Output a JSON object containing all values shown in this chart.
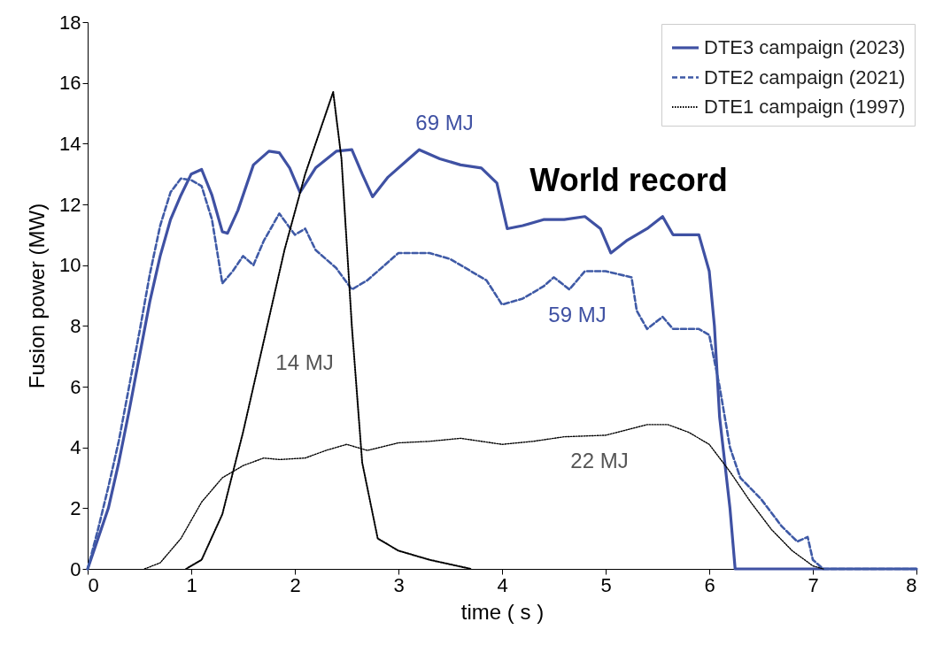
{
  "chart_data": {
    "type": "line",
    "xlabel": "time  ( s )",
    "ylabel": "Fusion power (MW)",
    "xlim": [
      0,
      8
    ],
    "xticks": [
      0,
      1,
      2,
      3,
      4,
      5,
      6,
      7,
      8
    ],
    "ylim": [
      0,
      18
    ],
    "yticks": [
      0,
      2,
      4,
      6,
      8,
      10,
      12,
      14,
      16,
      18
    ],
    "grid": false,
    "legend": "top right",
    "marker": "none",
    "series": [
      {
        "name": "DTE3 campaign (2023)",
        "color": "#3f51a3",
        "line_style": "solid",
        "x": [
          0,
          0.1,
          0.2,
          0.3,
          0.4,
          0.5,
          0.6,
          0.7,
          0.8,
          0.9,
          1.0,
          1.1,
          1.2,
          1.3,
          1.35,
          1.45,
          1.6,
          1.75,
          1.85,
          1.95,
          2.05,
          2.2,
          2.4,
          2.55,
          2.65,
          2.75,
          2.9,
          3.1,
          3.2,
          3.4,
          3.6,
          3.8,
          3.95,
          4.05,
          4.2,
          4.4,
          4.6,
          4.8,
          4.95,
          5.05,
          5.2,
          5.4,
          5.55,
          5.65,
          5.9,
          6.0,
          6.05,
          6.1,
          6.2,
          6.25,
          8.0
        ],
        "values": [
          0,
          1.0,
          2.0,
          3.5,
          5.2,
          7.0,
          8.8,
          10.3,
          11.5,
          12.3,
          13.0,
          13.15,
          12.3,
          11.1,
          11.05,
          11.8,
          13.3,
          13.75,
          13.7,
          13.2,
          12.4,
          13.2,
          13.75,
          13.8,
          13.0,
          12.25,
          12.9,
          13.5,
          13.8,
          13.5,
          13.3,
          13.2,
          12.7,
          11.2,
          11.3,
          11.5,
          11.5,
          11.6,
          11.2,
          10.4,
          10.8,
          11.2,
          11.6,
          11.0,
          11.0,
          9.8,
          8.0,
          5.0,
          2.0,
          0,
          0
        ]
      },
      {
        "name": "DTE2 campaign (2021)",
        "color": "#3f5aa6",
        "line_style": "dashed",
        "x": [
          0,
          0.1,
          0.2,
          0.3,
          0.4,
          0.5,
          0.6,
          0.7,
          0.8,
          0.9,
          1.0,
          1.1,
          1.2,
          1.3,
          1.4,
          1.5,
          1.6,
          1.7,
          1.85,
          2.0,
          2.1,
          2.2,
          2.4,
          2.55,
          2.7,
          3.0,
          3.3,
          3.5,
          3.7,
          3.85,
          4.0,
          4.2,
          4.4,
          4.5,
          4.65,
          4.8,
          5.0,
          5.25,
          5.3,
          5.4,
          5.55,
          5.65,
          5.9,
          6.0,
          6.1,
          6.2,
          6.3,
          6.5,
          6.7,
          6.85,
          6.95,
          7.0,
          7.1,
          8.0
        ],
        "values": [
          0,
          1.3,
          2.7,
          4.2,
          6.0,
          7.8,
          9.7,
          11.3,
          12.4,
          12.85,
          12.8,
          12.6,
          11.5,
          9.4,
          9.8,
          10.3,
          10.0,
          10.8,
          11.7,
          11.0,
          11.2,
          10.5,
          9.9,
          9.2,
          9.5,
          10.4,
          10.4,
          10.2,
          9.8,
          9.5,
          8.7,
          8.9,
          9.3,
          9.6,
          9.2,
          9.8,
          9.8,
          9.6,
          8.5,
          7.9,
          8.3,
          7.9,
          7.9,
          7.7,
          6.0,
          4.0,
          3.0,
          2.3,
          1.4,
          0.9,
          1.05,
          0.3,
          0,
          0
        ]
      },
      {
        "name": "DTE1 campaign (1997)",
        "color": "#000000",
        "line_style": "dotted",
        "x": [
          0.95,
          1.1,
          1.3,
          1.5,
          1.7,
          1.9,
          2.1,
          2.3,
          2.37,
          2.45,
          2.55,
          2.65,
          2.8,
          3.0,
          3.3,
          3.7
        ],
        "values": [
          0,
          0.3,
          1.8,
          4.5,
          7.5,
          10.5,
          13.0,
          15.0,
          15.7,
          13.5,
          8.0,
          3.5,
          1.0,
          0.6,
          0.3,
          0
        ]
      },
      {
        "color": "#000000",
        "line_style": "dotted",
        "x": [
          0.55,
          0.7,
          0.9,
          1.1,
          1.3,
          1.5,
          1.7,
          1.85,
          2.1,
          2.3,
          2.5,
          2.7,
          3.0,
          3.3,
          3.6,
          4.0,
          4.3,
          4.6,
          5.0,
          5.4,
          5.6,
          5.8,
          6.0,
          6.2,
          6.4,
          6.6,
          6.8,
          7.0,
          7.1
        ],
        "values": [
          0,
          0.2,
          1.0,
          2.2,
          3.0,
          3.4,
          3.65,
          3.6,
          3.65,
          3.9,
          4.1,
          3.9,
          4.15,
          4.2,
          4.3,
          4.1,
          4.2,
          4.35,
          4.4,
          4.75,
          4.75,
          4.5,
          4.1,
          3.2,
          2.2,
          1.3,
          0.6,
          0.1,
          0
        ]
      }
    ],
    "annotations": [
      "69 MJ",
      "World record",
      "59 MJ",
      "14 MJ",
      "22 MJ"
    ]
  }
}
